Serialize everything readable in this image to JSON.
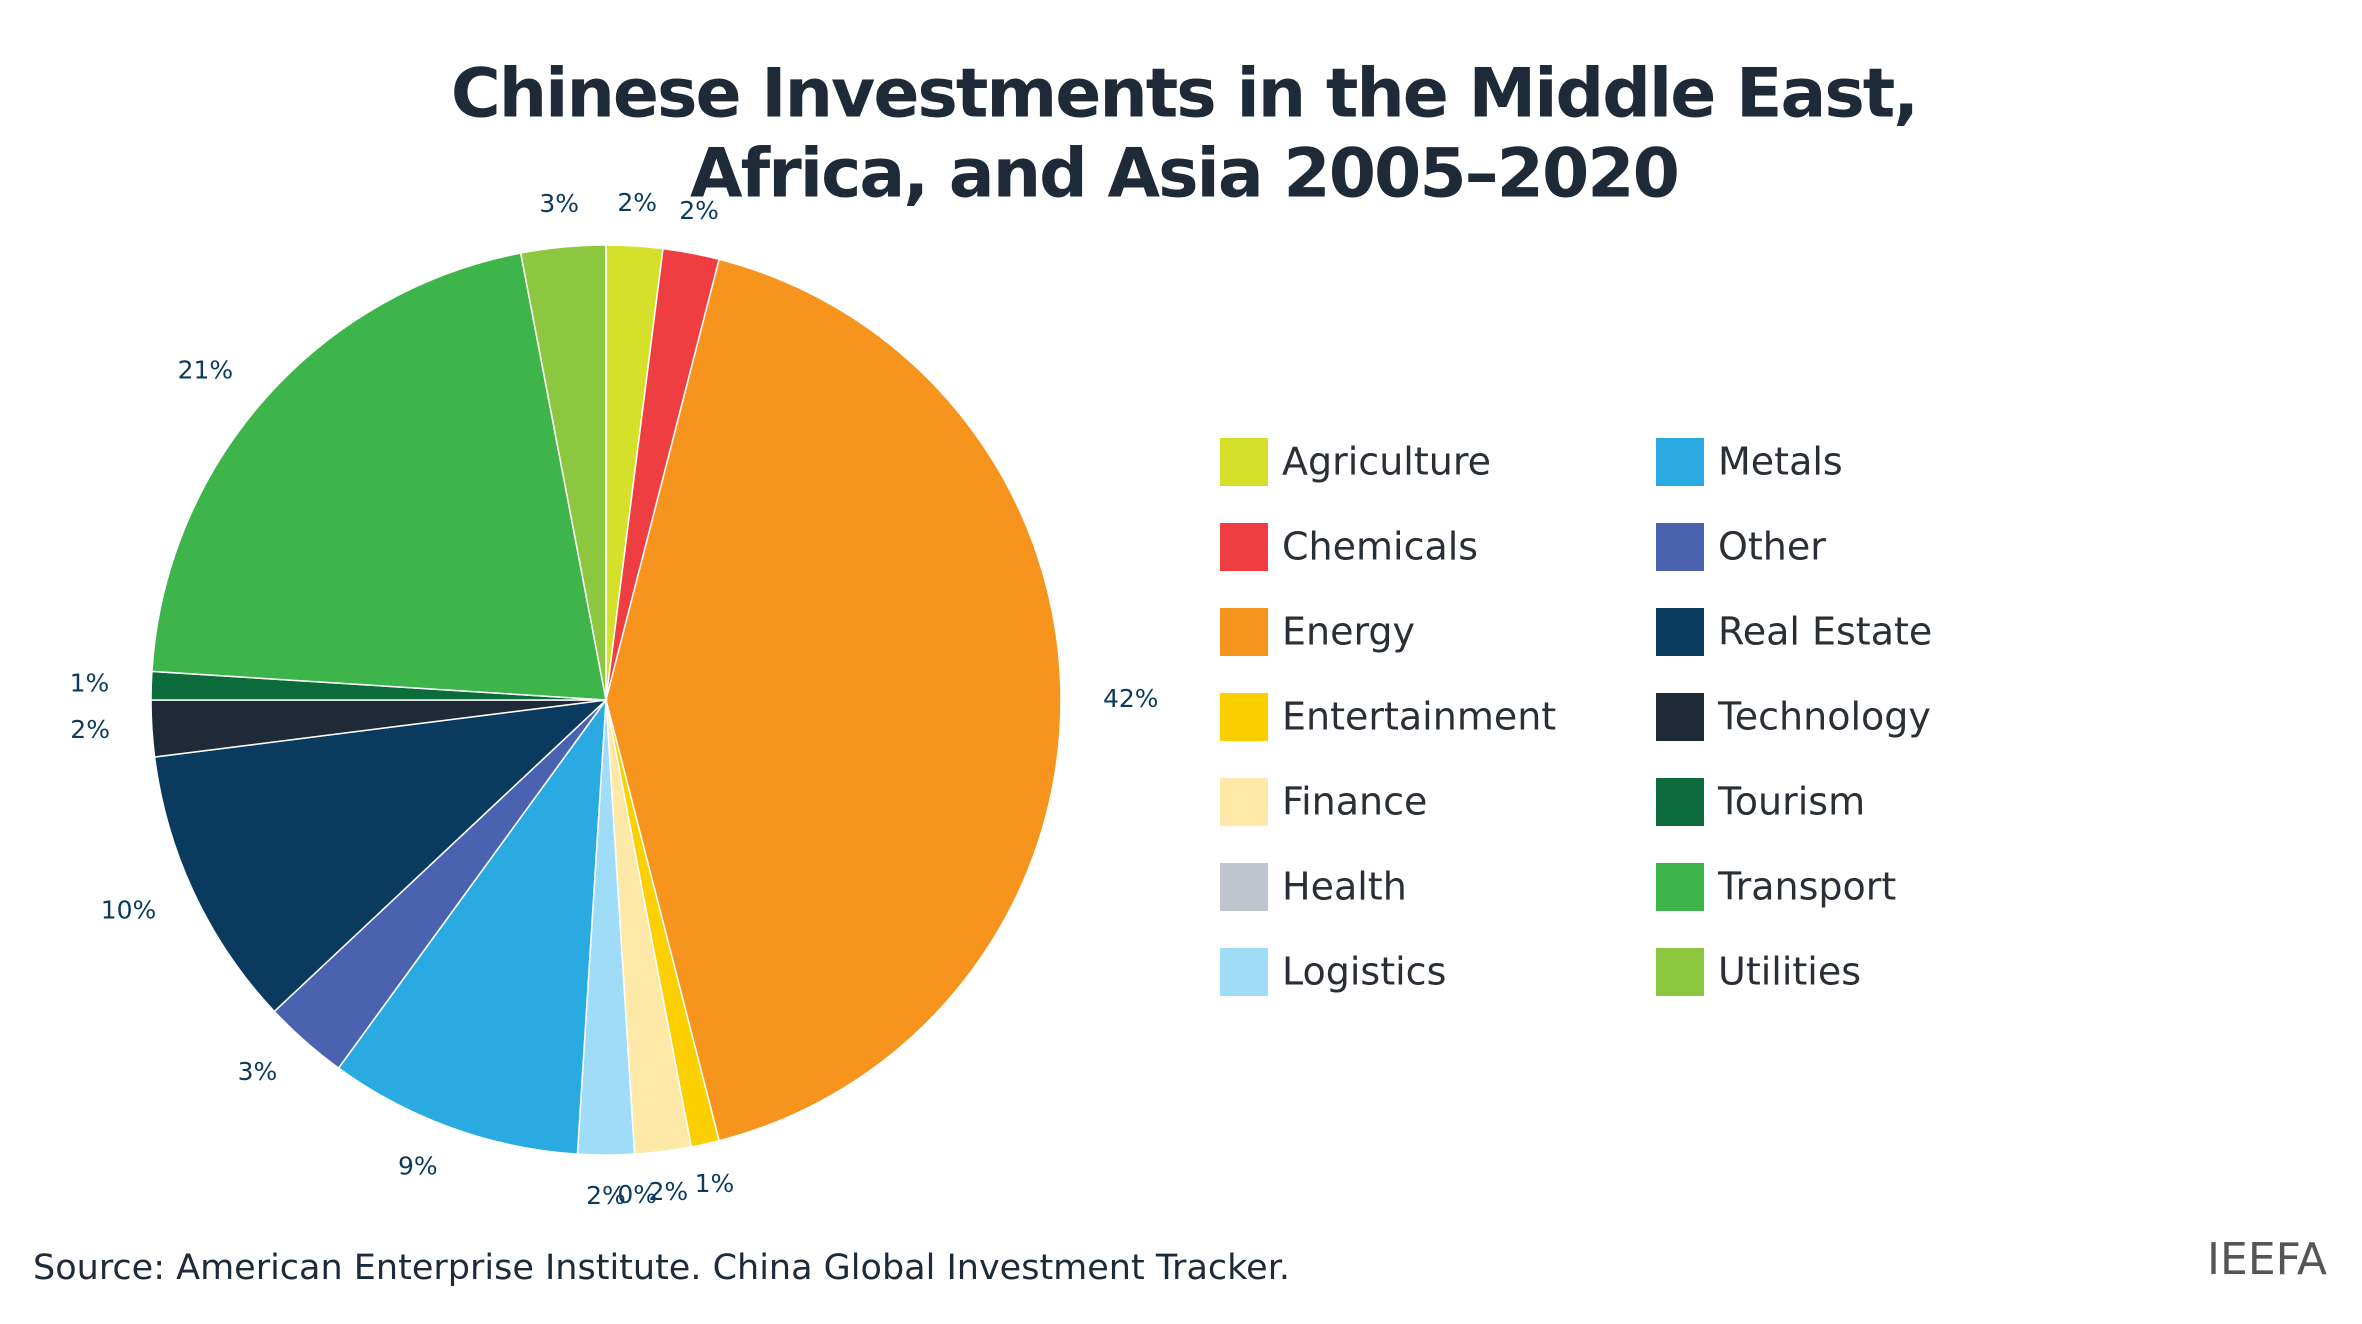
{
  "chart_data": {
    "type": "pie",
    "title": [
      "Chinese Investments in the Middle East,",
      "Africa, and Asia 2005–2020"
    ],
    "categories": [
      "Agriculture",
      "Chemicals",
      "Energy",
      "Entertainment",
      "Finance",
      "Health",
      "Logistics",
      "Metals",
      "Other",
      "Real Estate",
      "Technology",
      "Tourism",
      "Transport",
      "Utilities"
    ],
    "values": [
      2,
      2,
      42,
      1,
      2,
      0,
      2,
      9,
      3,
      10,
      2,
      1,
      21,
      3
    ],
    "value_labels": [
      "2%",
      "2%",
      "42%",
      "1%",
      "2%",
      "0%",
      "2%",
      "9%",
      "3%",
      "10%",
      "2%",
      "1%",
      "21%",
      "3%"
    ],
    "colors": [
      "#d4e02a",
      "#ef3e42",
      "#f7941e",
      "#fcd000",
      "#fde8a8",
      "#c0c4cc",
      "#9edcf7",
      "#29abe2",
      "#4b62b0",
      "#0a3a5e",
      "#1e2a38",
      "#0b6b3a",
      "#3db54a",
      "#8dc63f"
    ],
    "source": "Source: American Enterprise Institute. China Global Investment Tracker.",
    "logo": "IEEFA"
  }
}
